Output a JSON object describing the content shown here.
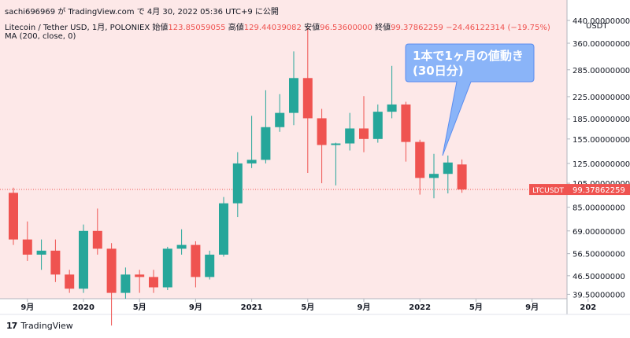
{
  "header": {
    "publish_line": "sachi696969 が TradingView.com で 4月 30, 2022 05:36 UTC+9 に公開",
    "symbol_info": "Litecoin / Tether USD, 1月, POLONIEX",
    "ohlc": [
      {
        "label": "始値",
        "value": "123.85059055"
      },
      {
        "label": "高値",
        "value": "129.44039082"
      },
      {
        "label": "安値",
        "value": "96.53600000"
      },
      {
        "label": "終値",
        "value": "99.37862259"
      }
    ],
    "change": "−24.46122314 (−19.75%)",
    "indicator": "MA (200, close, 0)"
  },
  "brand": "TradingView",
  "colors": {
    "background": "#fde8e8",
    "up": "#26a69a",
    "down": "#ef5350",
    "callout": "#8ab4f8",
    "price_line": "#ef5350"
  },
  "chart_data": {
    "type": "candlestick",
    "title": "Litecoin / Tether USD, 1月, POLONIEX",
    "currency_label": "USDT",
    "y_scale": "log",
    "ylim": [
      38,
      440
    ],
    "y_ticks": [
      "440.00000000",
      "360.00000000",
      "285.00000000",
      "225.00000000",
      "185.00000000",
      "155.00000000",
      "125.00000000",
      "105.00000000",
      "85.00000000",
      "69.00000000",
      "56.50000000",
      "46.50000000",
      "39.50000000"
    ],
    "x_ticks": [
      {
        "label": "9月",
        "month": "2019-09"
      },
      {
        "label": "2020",
        "month": "2020-01"
      },
      {
        "label": "5月",
        "month": "2020-05"
      },
      {
        "label": "9月",
        "month": "2020-09"
      },
      {
        "label": "2021",
        "month": "2021-01"
      },
      {
        "label": "5月",
        "month": "2021-05"
      },
      {
        "label": "9月",
        "month": "2021-09"
      },
      {
        "label": "2022",
        "month": "2022-01"
      },
      {
        "label": "5月",
        "month": "2022-05"
      },
      {
        "label": "9月",
        "month": "2022-09"
      },
      {
        "label": "202",
        "month": "2023-01"
      }
    ],
    "candles": [
      {
        "month": "2019-08",
        "open": 96.5,
        "high": 101,
        "low": 61,
        "close": 64
      },
      {
        "month": "2019-09",
        "open": 64,
        "high": 75,
        "low": 53,
        "close": 56
      },
      {
        "month": "2019-10",
        "open": 56,
        "high": 64,
        "low": 49,
        "close": 58
      },
      {
        "month": "2019-11",
        "open": 58,
        "high": 64,
        "low": 44,
        "close": 47
      },
      {
        "month": "2019-12",
        "open": 47,
        "high": 49,
        "low": 40,
        "close": 41.5
      },
      {
        "month": "2020-01",
        "open": 41.5,
        "high": 73,
        "low": 40,
        "close": 69
      },
      {
        "month": "2020-02",
        "open": 69,
        "high": 84,
        "low": 56,
        "close": 59
      },
      {
        "month": "2020-03",
        "open": 59,
        "high": 62,
        "low": 30,
        "close": 40
      },
      {
        "month": "2020-04",
        "open": 40,
        "high": 50,
        "low": 38,
        "close": 47
      },
      {
        "month": "2020-05",
        "open": 47,
        "high": 49,
        "low": 40,
        "close": 46
      },
      {
        "month": "2020-06",
        "open": 46,
        "high": 49,
        "low": 40,
        "close": 42
      },
      {
        "month": "2020-07",
        "open": 42,
        "high": 60,
        "low": 41,
        "close": 59
      },
      {
        "month": "2020-08",
        "open": 59,
        "high": 70,
        "low": 56,
        "close": 61
      },
      {
        "month": "2020-09",
        "open": 61,
        "high": 63,
        "low": 42,
        "close": 46
      },
      {
        "month": "2020-10",
        "open": 46,
        "high": 58,
        "low": 45,
        "close": 56
      },
      {
        "month": "2020-11",
        "open": 56,
        "high": 93,
        "low": 55,
        "close": 88
      },
      {
        "month": "2020-12",
        "open": 88,
        "high": 138,
        "low": 78,
        "close": 125
      },
      {
        "month": "2021-01",
        "open": 125,
        "high": 190,
        "low": 120,
        "close": 129
      },
      {
        "month": "2021-02",
        "open": 129,
        "high": 238,
        "low": 125,
        "close": 172
      },
      {
        "month": "2021-03",
        "open": 172,
        "high": 230,
        "low": 165,
        "close": 195
      },
      {
        "month": "2021-04",
        "open": 195,
        "high": 335,
        "low": 175,
        "close": 265
      },
      {
        "month": "2021-05",
        "open": 265,
        "high": 413,
        "low": 115,
        "close": 186
      },
      {
        "month": "2021-06",
        "open": 186,
        "high": 202,
        "low": 105,
        "close": 147
      },
      {
        "month": "2021-07",
        "open": 147,
        "high": 150,
        "low": 103,
        "close": 149
      },
      {
        "month": "2021-08",
        "open": 149,
        "high": 195,
        "low": 140,
        "close": 170
      },
      {
        "month": "2021-09",
        "open": 170,
        "high": 226,
        "low": 138,
        "close": 155
      },
      {
        "month": "2021-10",
        "open": 155,
        "high": 210,
        "low": 150,
        "close": 197
      },
      {
        "month": "2021-11",
        "open": 197,
        "high": 295,
        "low": 186,
        "close": 210
      },
      {
        "month": "2021-12",
        "open": 210,
        "high": 215,
        "low": 127,
        "close": 151
      },
      {
        "month": "2022-01",
        "open": 151,
        "high": 154,
        "low": 95,
        "close": 110
      },
      {
        "month": "2022-02",
        "open": 110,
        "high": 136,
        "low": 92,
        "close": 114
      },
      {
        "month": "2022-03",
        "open": 114,
        "high": 134,
        "low": 96,
        "close": 126
      },
      {
        "month": "2022-04",
        "open": 123.85059055,
        "high": 129.44039082,
        "low": 96.536,
        "close": 99.37862259
      }
    ],
    "last_price": {
      "symbol": "LTCUSDT",
      "value": "99.37862259"
    },
    "annotation": "1本で1ヶ月の値動き\n(30日分)"
  }
}
